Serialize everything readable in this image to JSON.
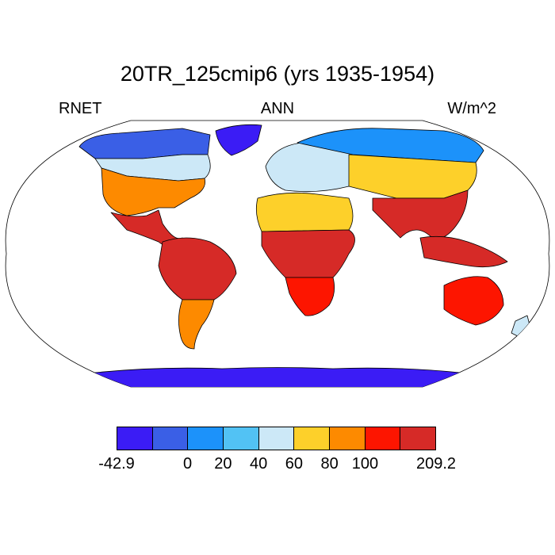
{
  "title": "20TR_125cmip6 (yrs 1935-1954)",
  "left_label": "RNET",
  "center_label": "ANN",
  "right_label": "W/m^2",
  "colorbar": {
    "colors": [
      "#3b1cf5",
      "#3a5fe6",
      "#1c92fa",
      "#52c2f4",
      "#cce8f7",
      "#fdd02a",
      "#fd8a00",
      "#fd1500",
      "#d62a27"
    ],
    "labels": [
      {
        "text": "-42.9",
        "boundary": 0
      },
      {
        "text": "0",
        "boundary": 2
      },
      {
        "text": "20",
        "boundary": 3
      },
      {
        "text": "40",
        "boundary": 4
      },
      {
        "text": "60",
        "boundary": 5
      },
      {
        "text": "80",
        "boundary": 6
      },
      {
        "text": "100",
        "boundary": 7
      },
      {
        "text": "209.2",
        "boundary": 9
      }
    ]
  },
  "regions": [
    {
      "name": "north-america-arctic",
      "color_index": 1
    },
    {
      "name": "greenland",
      "color_index": 0
    },
    {
      "name": "canada",
      "color_index": 4
    },
    {
      "name": "usa",
      "color_index": 6
    },
    {
      "name": "mexico-central-america",
      "color_index": 8
    },
    {
      "name": "south-america-tropics",
      "color_index": 8
    },
    {
      "name": "south-america-south",
      "color_index": 6
    },
    {
      "name": "europe",
      "color_index": 4
    },
    {
      "name": "siberia",
      "color_index": 2
    },
    {
      "name": "central-asia",
      "color_index": 5
    },
    {
      "name": "south-asia",
      "color_index": 8
    },
    {
      "name": "sahara",
      "color_index": 5
    },
    {
      "name": "central-africa",
      "color_index": 8
    },
    {
      "name": "southern-africa",
      "color_index": 7
    },
    {
      "name": "maritime-continent",
      "color_index": 8
    },
    {
      "name": "australia",
      "color_index": 7
    },
    {
      "name": "new-zealand",
      "color_index": 4
    },
    {
      "name": "antarctica",
      "color_index": 0
    }
  ]
}
